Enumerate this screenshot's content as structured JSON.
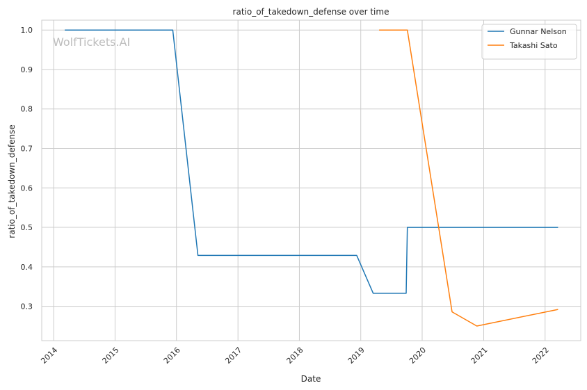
{
  "chart_data": {
    "type": "line",
    "title": "ratio_of_takedown_defense over time",
    "xlabel": "Date",
    "ylabel": "ratio_of_takedown_defense",
    "watermark": "WolfTickets.AI",
    "x_ticks": [
      "2014",
      "2015",
      "2016",
      "2017",
      "2018",
      "2019",
      "2020",
      "2021",
      "2022"
    ],
    "y_ticks": [
      "0.3",
      "0.4",
      "0.5",
      "0.6",
      "0.7",
      "0.8",
      "0.9",
      "1.0"
    ],
    "xlim": [
      "2013-10-22",
      "2022-08-01"
    ],
    "ylim": [
      0.213,
      1.025
    ],
    "grid": true,
    "legend_position": "top-right",
    "series": [
      {
        "name": "Gunnar Nelson",
        "color": "#1f77b4",
        "points": [
          {
            "x": "2014-03-08",
            "y": 1.0
          },
          {
            "x": "2015-12-10",
            "y": 1.0
          },
          {
            "x": "2016-05-08",
            "y": 0.429
          },
          {
            "x": "2018-12-08",
            "y": 0.429
          },
          {
            "x": "2019-03-16",
            "y": 0.333
          },
          {
            "x": "2019-09-28",
            "y": 0.333
          },
          {
            "x": "2019-10-05",
            "y": 0.5
          },
          {
            "x": "2022-03-19",
            "y": 0.5
          }
        ]
      },
      {
        "name": "Takashi Sato",
        "color": "#ff7f0e",
        "points": [
          {
            "x": "2019-04-20",
            "y": 1.0
          },
          {
            "x": "2019-10-05",
            "y": 1.0
          },
          {
            "x": "2020-06-27",
            "y": 0.286
          },
          {
            "x": "2020-11-21",
            "y": 0.25
          },
          {
            "x": "2022-03-19",
            "y": 0.292
          }
        ]
      }
    ]
  }
}
